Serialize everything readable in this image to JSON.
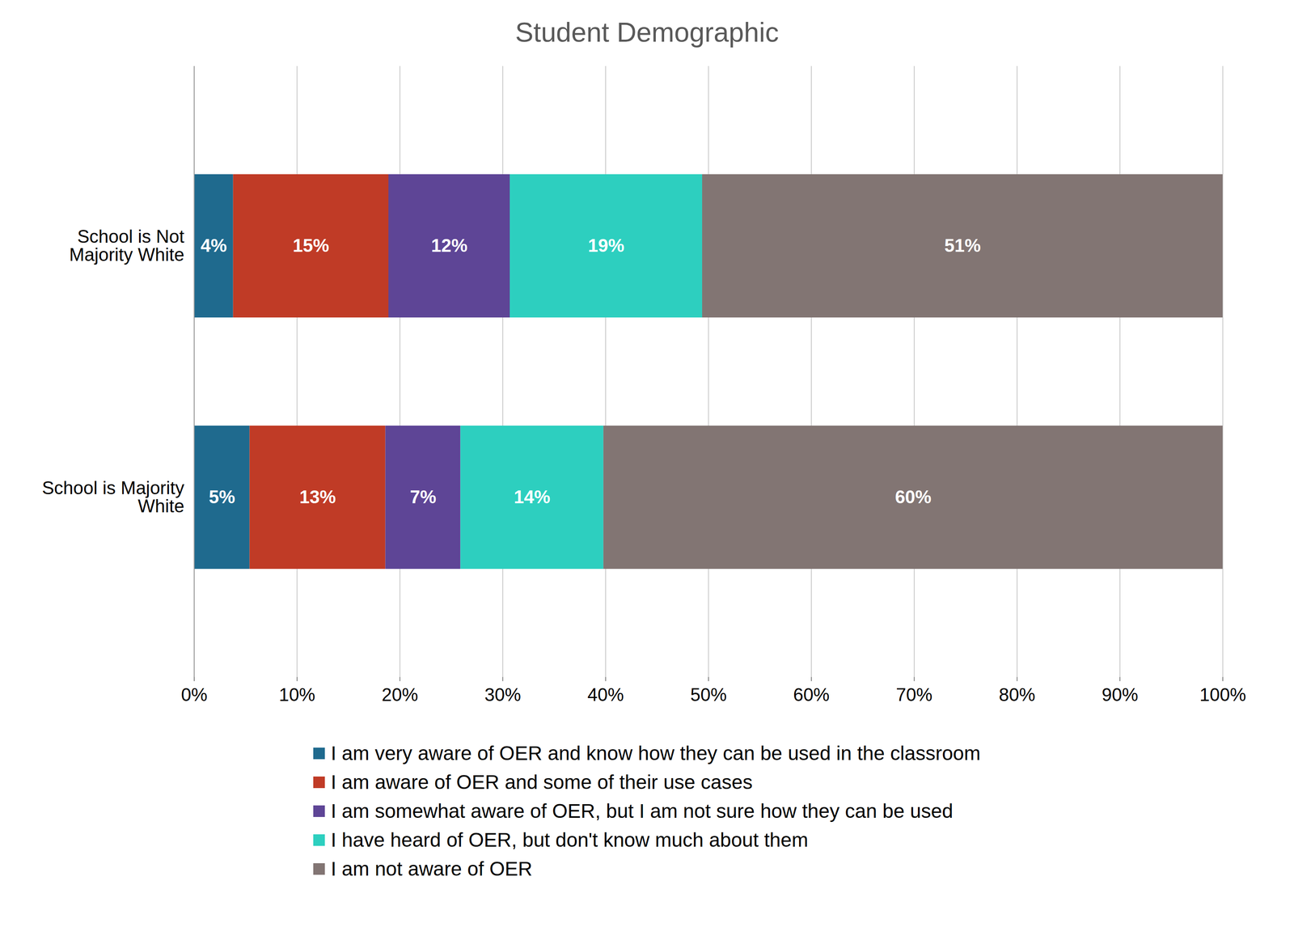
{
  "chart_data": {
    "type": "bar",
    "title": "Student Demographic",
    "orientation": "horizontal",
    "stacked": true,
    "data_labels": true,
    "grid": true,
    "legend": "bottom",
    "categories": [
      "School is Not Majority White",
      "School is Majority White"
    ],
    "xlim": [
      0,
      100
    ],
    "xticks": [
      {
        "value": 0,
        "label": "0%"
      },
      {
        "value": 10,
        "label": "10%"
      },
      {
        "value": 20,
        "label": "20%"
      },
      {
        "value": 30,
        "label": "30%"
      },
      {
        "value": 40,
        "label": "40%"
      },
      {
        "value": 50,
        "label": "50%"
      },
      {
        "value": 60,
        "label": "60%"
      },
      {
        "value": 70,
        "label": "70%"
      },
      {
        "value": 80,
        "label": "80%"
      },
      {
        "value": 90,
        "label": "90%"
      },
      {
        "value": 100,
        "label": "100%"
      }
    ],
    "series": [
      {
        "name": "I am very aware of OER and know how they can be used in the classroom",
        "color": "#1f6a8e",
        "values": [
          3.8,
          5.4
        ],
        "value_labels": [
          "4%",
          "5%"
        ]
      },
      {
        "name": "I am aware of OER and some of their use cases",
        "color": "#c03b26",
        "values": [
          15.1,
          13.2
        ],
        "value_labels": [
          "15%",
          "13%"
        ]
      },
      {
        "name": "I am somewhat aware of OER, but I am not sure how they can be used",
        "color": "#5e4596",
        "values": [
          11.8,
          7.3
        ],
        "value_labels": [
          "12%",
          "7%"
        ]
      },
      {
        "name": "I have heard of OER, but don't know much about them",
        "color": "#2dcfbf",
        "values": [
          18.7,
          13.9
        ],
        "value_labels": [
          "19%",
          "14%"
        ]
      },
      {
        "name": "I am not aware of OER",
        "color": "#827573",
        "values": [
          50.6,
          60.2
        ],
        "value_labels": [
          "51%",
          "60%"
        ]
      }
    ]
  }
}
